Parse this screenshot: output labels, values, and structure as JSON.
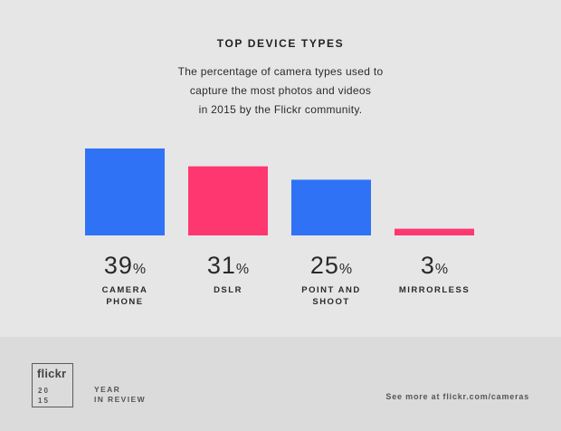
{
  "header": {
    "title": "TOP DEVICE TYPES",
    "subtitle_lines": [
      "The percentage of camera types used to",
      "capture the most photos and videos",
      "in 2015 by the Flickr community."
    ]
  },
  "chart_data": {
    "type": "bar",
    "title": "TOP DEVICE TYPES",
    "categories": [
      [
        "CAMERA",
        "PHONE"
      ],
      [
        "DSLR"
      ],
      [
        "POINT AND",
        "SHOOT"
      ],
      [
        "MIRRORLESS"
      ]
    ],
    "values": [
      39,
      31,
      25,
      3
    ],
    "value_suffix": "%",
    "bar_colors": [
      "#2f72f5",
      "#fe3771",
      "#2f72f5",
      "#fe3771"
    ],
    "grid": false,
    "legend": "none"
  },
  "footer": {
    "logo_word": "flickr",
    "logo_year_lines": [
      "20",
      "15"
    ],
    "year_review_lines": [
      "YEAR",
      "IN REVIEW"
    ],
    "see_more": "See more at flickr.com/cameras"
  }
}
